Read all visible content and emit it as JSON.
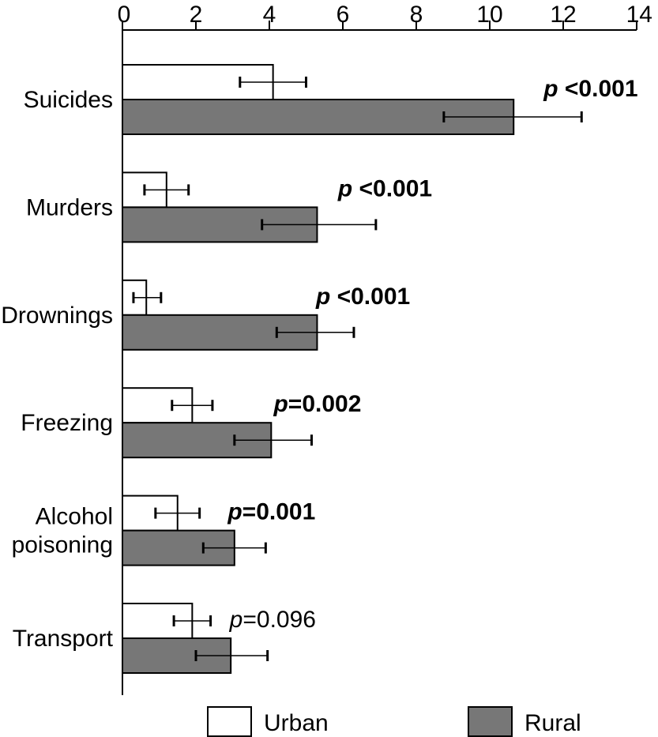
{
  "chart_data": {
    "type": "bar",
    "orientation": "horizontal",
    "title": "",
    "xlabel": "",
    "ylabel": "",
    "xlim": [
      0,
      14
    ],
    "x_ticks": [
      0,
      2,
      4,
      6,
      8,
      10,
      12,
      14
    ],
    "x_axis_position": "top",
    "grid": false,
    "categories": [
      [
        "Suicides"
      ],
      [
        "Murders"
      ],
      [
        "Drownings"
      ],
      [
        "Freezing"
      ],
      [
        "Alcohol",
        "poisoning"
      ],
      [
        "Transport"
      ]
    ],
    "series": [
      {
        "name": "Urban",
        "color": "#ffffff",
        "values": [
          4.1,
          1.2,
          0.65,
          1.9,
          1.5,
          1.9
        ],
        "error_low": [
          3.2,
          0.6,
          0.3,
          1.35,
          0.9,
          1.4
        ],
        "error_high": [
          5.0,
          1.8,
          1.05,
          2.45,
          2.1,
          2.4
        ]
      },
      {
        "name": "Rural",
        "color": "#777777",
        "values": [
          10.65,
          5.3,
          5.3,
          4.05,
          3.05,
          2.95
        ],
        "error_low": [
          8.75,
          3.8,
          4.2,
          3.05,
          2.2,
          2.0
        ],
        "error_high": [
          12.5,
          6.9,
          6.3,
          5.15,
          3.9,
          3.95
        ]
      }
    ],
    "annotations": [
      {
        "prefix": "p",
        "text": " <0.001",
        "bold": true
      },
      {
        "prefix": "p",
        "text": " <0.001",
        "bold": true
      },
      {
        "prefix": "p",
        "text": " <0.001",
        "bold": true
      },
      {
        "prefix": "p",
        "text": "=0.002",
        "bold": true
      },
      {
        "prefix": "p",
        "text": "=0.001",
        "bold": true
      },
      {
        "prefix": "p",
        "text": "=0.096",
        "bold": false
      }
    ],
    "legend": {
      "placement": "bottom",
      "entries": [
        "Urban",
        "Rural"
      ]
    }
  }
}
